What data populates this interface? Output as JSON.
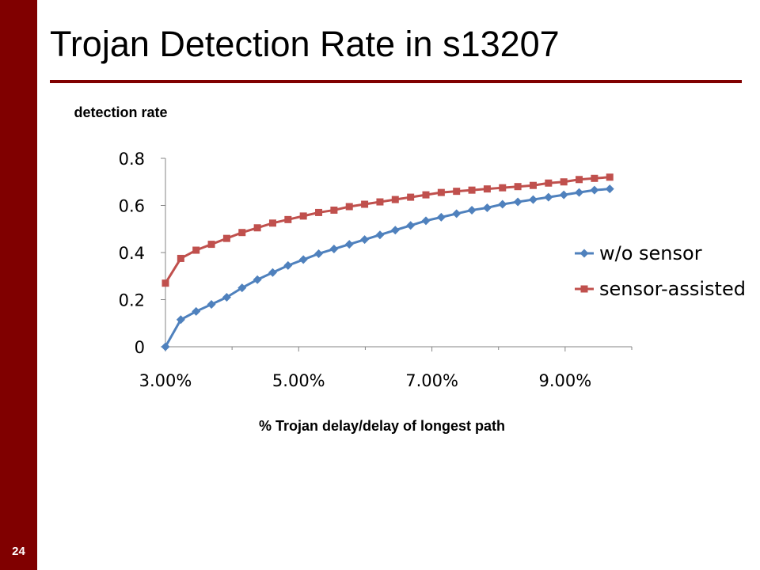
{
  "slide": {
    "title": "Trojan Detection Rate in s13207",
    "number": "24",
    "colors": {
      "accent": "#800000"
    }
  },
  "chart_data": {
    "type": "line",
    "title": "",
    "ylabel": "detection rate",
    "xlabel": "% Trojan delay/delay of longest path",
    "x_ticks": [
      "3.00%",
      "5.00%",
      "7.00%",
      "9.00%"
    ],
    "y_ticks": [
      "0",
      "0.2",
      "0.4",
      "0.6",
      "0.8"
    ],
    "xlim": [
      3.0,
      10.0
    ],
    "ylim": [
      0,
      0.8
    ],
    "x": [
      3.0,
      3.23,
      3.46,
      3.69,
      3.92,
      4.15,
      4.38,
      4.61,
      4.84,
      5.07,
      5.3,
      5.53,
      5.76,
      5.99,
      6.22,
      6.45,
      6.68,
      6.91,
      7.14,
      7.37,
      7.6,
      7.83,
      8.06,
      8.29,
      8.52,
      8.75,
      8.98,
      9.21,
      9.44,
      9.67
    ],
    "grid": false,
    "legend_position": "right",
    "series": [
      {
        "name": "w/o sensor",
        "color": "#4f81bd",
        "marker": "diamond",
        "values": [
          0.0,
          0.115,
          0.15,
          0.18,
          0.21,
          0.25,
          0.285,
          0.315,
          0.345,
          0.37,
          0.395,
          0.415,
          0.435,
          0.455,
          0.475,
          0.495,
          0.515,
          0.535,
          0.55,
          0.565,
          0.58,
          0.59,
          0.605,
          0.615,
          0.625,
          0.635,
          0.645,
          0.655,
          0.665,
          0.67
        ]
      },
      {
        "name": "sensor-assisted",
        "color": "#c0504d",
        "marker": "square",
        "values": [
          0.27,
          0.375,
          0.41,
          0.435,
          0.46,
          0.485,
          0.505,
          0.525,
          0.54,
          0.555,
          0.57,
          0.58,
          0.595,
          0.605,
          0.615,
          0.625,
          0.635,
          0.645,
          0.655,
          0.66,
          0.665,
          0.67,
          0.675,
          0.68,
          0.685,
          0.695,
          0.7,
          0.71,
          0.715,
          0.72
        ]
      }
    ]
  }
}
